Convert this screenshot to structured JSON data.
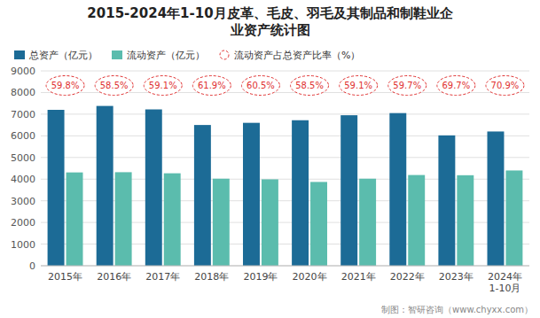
{
  "chart_data": {
    "type": "bar",
    "title": "2015-2024年1-10月皮革、毛皮、羽毛及其制品和制鞋业企\n业资产统计图",
    "categories": [
      "2015年",
      "2016年",
      "2017年",
      "2018年",
      "2019年",
      "2020年",
      "2021年",
      "2022年",
      "2023年",
      "2024年\n1-10月"
    ],
    "series": [
      {
        "name": "总资产（亿元）",
        "color": "#1c6b96",
        "values": [
          7200,
          7380,
          7220,
          6500,
          6600,
          6720,
          6950,
          7050,
          6020,
          6200
        ]
      },
      {
        "name": "流动资产（亿元）",
        "color": "#5bbcad",
        "values": [
          4310,
          4320,
          4270,
          4020,
          3990,
          3870,
          4020,
          4190,
          4180,
          4400
        ]
      },
      {
        "name": "流动资产占总资产比率（%）",
        "type": "label",
        "marker": "ellipse",
        "line_style": "dashed",
        "color": "#e03030",
        "data_labels": true,
        "values": [
          59.8,
          58.5,
          59.1,
          61.9,
          60.5,
          58.5,
          59.1,
          59.7,
          69.7,
          70.9
        ],
        "value_labels": [
          "59.8%",
          "58.5%",
          "59.1%",
          "61.9%",
          "60.5%",
          "58.5%",
          "59.1%",
          "59.7%",
          "69.7%",
          "70.9%"
        ]
      }
    ],
    "ylim": [
      0,
      9000
    ],
    "yticks": [
      0,
      1000,
      2000,
      3000,
      4000,
      5000,
      6000,
      7000,
      8000,
      9000
    ],
    "grid": true,
    "legend": "top",
    "annotations": [
      "制图：智研咨询（www.chyxx.com）"
    ]
  }
}
